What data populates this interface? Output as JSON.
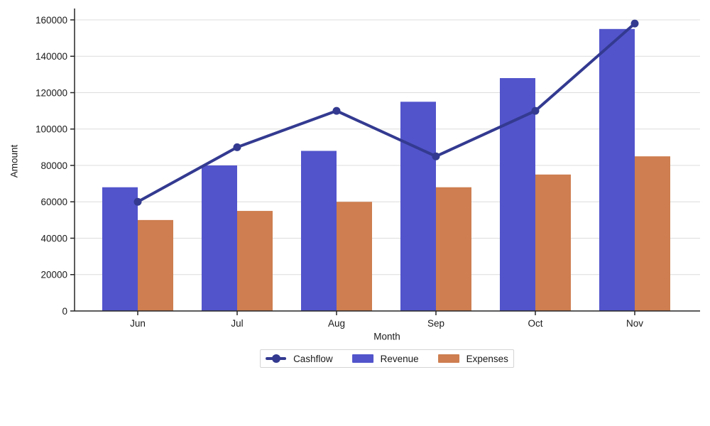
{
  "chart_data": {
    "type": "combo",
    "title": "",
    "xlabel": "Month",
    "ylabel": "Amount",
    "categories": [
      "Jun",
      "Jul",
      "Aug",
      "Sep",
      "Oct",
      "Nov"
    ],
    "series": [
      {
        "name": "Cashflow",
        "type": "line",
        "marker": "circle",
        "color": "#333a90",
        "values": [
          60000,
          90000,
          110000,
          85000,
          110000,
          158000
        ]
      },
      {
        "name": "Revenue",
        "type": "bar",
        "color": "#5254cb",
        "values": [
          68000,
          80000,
          88000,
          115000,
          128000,
          155000
        ]
      },
      {
        "name": "Expenses",
        "type": "bar",
        "color": "#ce7e50",
        "values": [
          50000,
          55000,
          60000,
          68000,
          75000,
          85000
        ]
      }
    ],
    "ylim": [
      0,
      160000
    ],
    "ytick_step": 20000,
    "ytick_labels": [
      "0",
      "20000",
      "40000",
      "60000",
      "80000",
      "100000",
      "120000",
      "140000",
      "160000"
    ],
    "grid": "horizontal",
    "grid_color": "#dcdcdc",
    "axis_color": "#262626",
    "text_color": "#1a1a1a",
    "legend_position": "bottom"
  }
}
